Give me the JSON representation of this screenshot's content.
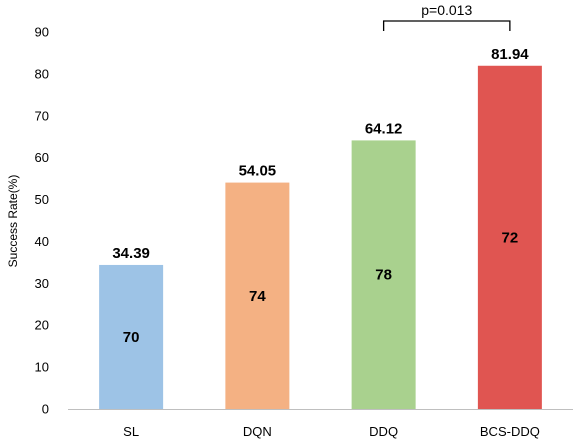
{
  "chart_data": {
    "type": "bar",
    "categories": [
      "SL",
      "DQN",
      "DDQ",
      "BCS-DDQ"
    ],
    "values": [
      34.39,
      54.05,
      64.12,
      81.94
    ],
    "value_labels": [
      "34.39",
      "54.05",
      "64.12",
      "81.94"
    ],
    "inner_labels": [
      "70",
      "74",
      "78",
      "72"
    ],
    "colors": [
      "#9dc3e6",
      "#f4b183",
      "#a9d18e",
      "#e05551"
    ],
    "title": "",
    "xlabel": "",
    "ylabel": "Success Rate(%)",
    "ylim": [
      0,
      90
    ],
    "yticks": [
      0,
      10,
      20,
      30,
      40,
      50,
      60,
      70,
      80,
      90
    ],
    "grid": false,
    "annotations": [
      {
        "text": "p=0.013",
        "between": [
          "DDQ",
          "BCS-DDQ"
        ]
      }
    ]
  }
}
